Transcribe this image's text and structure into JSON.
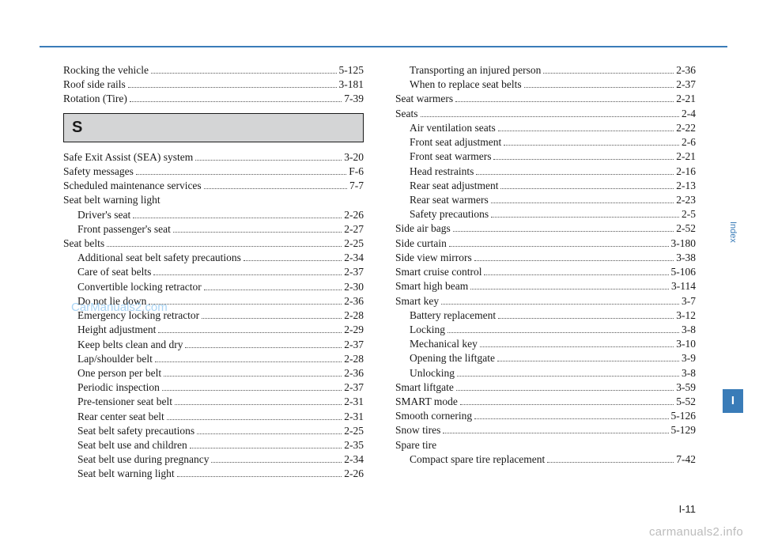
{
  "styles": {
    "rule_color": "#3a7cb8",
    "section_bg": "#d4d5d6",
    "section_border": "#1a1a1a",
    "tab_bg": "#3a7cb8",
    "font_body": "Times New Roman",
    "font_ui": "Arial",
    "body_fontsize_pt": 10,
    "section_letter_fontsize_pt": 15
  },
  "left": {
    "pre": [
      {
        "label": "Rocking the vehicle",
        "page": "5-125",
        "indent": 0
      },
      {
        "label": "Roof side rails",
        "page": "3-181",
        "indent": 0
      },
      {
        "label": "Rotation (Tire)",
        "page": "7-39",
        "indent": 0
      }
    ],
    "section_letter": "S",
    "entries": [
      {
        "label": "Safe Exit Assist (SEA) system",
        "page": "3-20",
        "indent": 0
      },
      {
        "label": "Safety messages",
        "page": "F-6",
        "indent": 0
      },
      {
        "label": "Scheduled maintenance services",
        "page": "7-7",
        "indent": 0
      },
      {
        "label": "Seat belt warning light",
        "page": "",
        "indent": 0
      },
      {
        "label": "Driver's seat",
        "page": "2-26",
        "indent": 1
      },
      {
        "label": "Front passenger's seat",
        "page": "2-27",
        "indent": 1
      },
      {
        "label": "Seat belts",
        "page": "2-25",
        "indent": 0
      },
      {
        "label": "Additional seat belt safety precautions",
        "page": "2-34",
        "indent": 1
      },
      {
        "label": "Care of seat belts",
        "page": "2-37",
        "indent": 1
      },
      {
        "label": "Convertible locking retractor",
        "page": "2-30",
        "indent": 1
      },
      {
        "label": "Do not lie down",
        "page": "2-36",
        "indent": 1
      },
      {
        "label": "Emergency locking retractor",
        "page": "2-28",
        "indent": 1
      },
      {
        "label": "Height adjustment",
        "page": "2-29",
        "indent": 1
      },
      {
        "label": "Keep belts clean and dry",
        "page": "2-37",
        "indent": 1
      },
      {
        "label": "Lap/shoulder belt",
        "page": "2-28",
        "indent": 1
      },
      {
        "label": "One person per belt",
        "page": "2-36",
        "indent": 1
      },
      {
        "label": "Periodic inspection",
        "page": "2-37",
        "indent": 1
      },
      {
        "label": "Pre-tensioner seat belt",
        "page": "2-31",
        "indent": 1
      },
      {
        "label": "Rear center seat belt",
        "page": "2-31",
        "indent": 1
      },
      {
        "label": "Seat belt safety precautions",
        "page": "2-25",
        "indent": 1
      },
      {
        "label": "Seat belt use and children",
        "page": "2-35",
        "indent": 1
      },
      {
        "label": "Seat belt use during pregnancy",
        "page": "2-34",
        "indent": 1
      },
      {
        "label": "Seat belt warning light",
        "page": "2-26",
        "indent": 1
      }
    ]
  },
  "right": {
    "entries": [
      {
        "label": "Transporting an injured person",
        "page": "2-36",
        "indent": 1
      },
      {
        "label": "When to replace seat belts",
        "page": "2-37",
        "indent": 1
      },
      {
        "label": "Seat warmers",
        "page": "2-21",
        "indent": 0
      },
      {
        "label": "Seats",
        "page": "2-4",
        "indent": 0
      },
      {
        "label": "Air ventilation seats",
        "page": "2-22",
        "indent": 1
      },
      {
        "label": "Front seat adjustment",
        "page": "2-6",
        "indent": 1
      },
      {
        "label": "Front seat warmers",
        "page": "2-21",
        "indent": 1
      },
      {
        "label": "Head restraints",
        "page": "2-16",
        "indent": 1
      },
      {
        "label": "Rear seat adjustment",
        "page": "2-13",
        "indent": 1
      },
      {
        "label": "Rear seat warmers",
        "page": "2-23",
        "indent": 1
      },
      {
        "label": "Safety precautions",
        "page": "2-5",
        "indent": 1
      },
      {
        "label": "Side air bags",
        "page": "2-52",
        "indent": 0
      },
      {
        "label": "Side curtain",
        "page": "3-180",
        "indent": 0
      },
      {
        "label": "Side view mirrors",
        "page": "3-38",
        "indent": 0
      },
      {
        "label": "Smart cruise control",
        "page": "5-106",
        "indent": 0
      },
      {
        "label": "Smart high beam",
        "page": "3-114",
        "indent": 0
      },
      {
        "label": "Smart key",
        "page": "3-7",
        "indent": 0
      },
      {
        "label": "Battery replacement",
        "page": "3-12",
        "indent": 1
      },
      {
        "label": "Locking",
        "page": "3-8",
        "indent": 1
      },
      {
        "label": "Mechanical key",
        "page": "3-10",
        "indent": 1
      },
      {
        "label": "Opening the liftgate",
        "page": "3-9",
        "indent": 1
      },
      {
        "label": "Unlocking",
        "page": "3-8",
        "indent": 1
      },
      {
        "label": "Smart liftgate",
        "page": "3-59",
        "indent": 0
      },
      {
        "label": "SMART mode",
        "page": "5-52",
        "indent": 0
      },
      {
        "label": "Smooth cornering",
        "page": "5-126",
        "indent": 0
      },
      {
        "label": "Snow tires",
        "page": "5-129",
        "indent": 0
      },
      {
        "label": "Spare tire",
        "page": "",
        "indent": 0
      },
      {
        "label": "Compact spare tire replacement",
        "page": "7-42",
        "indent": 1
      }
    ]
  },
  "side_tab": {
    "label": "Index",
    "letter": "I"
  },
  "page_number": "I-11",
  "watermark_center": "CarManuals2.com",
  "watermark_footer": "carmanuals2.info"
}
